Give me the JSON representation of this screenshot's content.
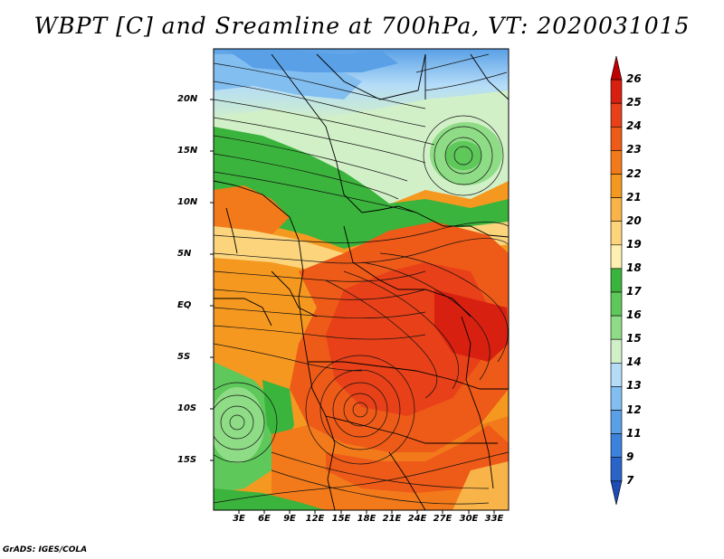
{
  "title": "WBPT [C] and Sreamline at 700hPa, VT: 2020031015",
  "lat_labels": [
    "20N",
    "15N",
    "10N",
    "5N",
    "EQ",
    "5S",
    "10S",
    "15S"
  ],
  "lon_labels": [
    "3E",
    "6E",
    "9E",
    "12E",
    "15E",
    "18E",
    "21E",
    "24E",
    "27E",
    "30E",
    "33E"
  ],
  "colorbar": {
    "levels": [
      "26",
      "25",
      "24",
      "23",
      "22",
      "21",
      "20",
      "19",
      "18",
      "17",
      "16",
      "15",
      "14",
      "13",
      "12",
      "11",
      "9",
      "7"
    ],
    "colors": [
      "#c00000",
      "#d82010",
      "#e84018",
      "#ee5a18",
      "#f27a1a",
      "#f59820",
      "#f8b448",
      "#fbd47c",
      "#fdf0b0",
      "#3ab43c",
      "#5ec85a",
      "#8fdc86",
      "#d2f0c8",
      "#b4dcf8",
      "#82bef0",
      "#5aa0e6",
      "#3c82dc",
      "#2a64c8",
      "#1e4cb4"
    ]
  },
  "credit": "GrADS: IGES/COLA"
}
